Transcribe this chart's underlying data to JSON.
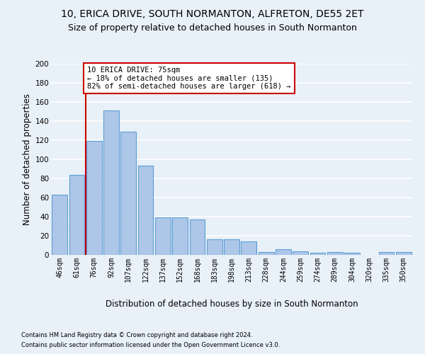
{
  "title": "10, ERICA DRIVE, SOUTH NORMANTON, ALFRETON, DE55 2ET",
  "subtitle": "Size of property relative to detached houses in South Normanton",
  "xlabel": "Distribution of detached houses by size in South Normanton",
  "ylabel": "Number of detached properties",
  "footer1": "Contains HM Land Registry data © Crown copyright and database right 2024.",
  "footer2": "Contains public sector information licensed under the Open Government Licence v3.0.",
  "categories": [
    "46sqm",
    "61sqm",
    "76sqm",
    "92sqm",
    "107sqm",
    "122sqm",
    "137sqm",
    "152sqm",
    "168sqm",
    "183sqm",
    "198sqm",
    "213sqm",
    "228sqm",
    "244sqm",
    "259sqm",
    "274sqm",
    "289sqm",
    "304sqm",
    "320sqm",
    "335sqm",
    "350sqm"
  ],
  "values": [
    63,
    84,
    119,
    151,
    129,
    93,
    39,
    39,
    37,
    16,
    16,
    14,
    3,
    6,
    4,
    2,
    3,
    2,
    0,
    3,
    3
  ],
  "bar_color": "#aec6e8",
  "bar_edge_color": "#5a9fd4",
  "vline_x": 1.5,
  "vline_color": "#cc0000",
  "annotation_text": "10 ERICA DRIVE: 75sqm\n← 18% of detached houses are smaller (135)\n82% of semi-detached houses are larger (618) →",
  "annotation_box_color": "#ffffff",
  "annotation_box_edge_color": "#cc0000",
  "ylim": [
    0,
    200
  ],
  "yticks": [
    0,
    20,
    40,
    60,
    80,
    100,
    120,
    140,
    160,
    180,
    200
  ],
  "bg_color": "#e8f0f8",
  "plot_bg_color": "#e8f0f8",
  "grid_color": "#ffffff",
  "title_fontsize": 10,
  "subtitle_fontsize": 9,
  "xlabel_fontsize": 8.5,
  "ylabel_fontsize": 8.5,
  "annot_fontsize": 7.5,
  "tick_fontsize": 7,
  "footer_fontsize": 6
}
